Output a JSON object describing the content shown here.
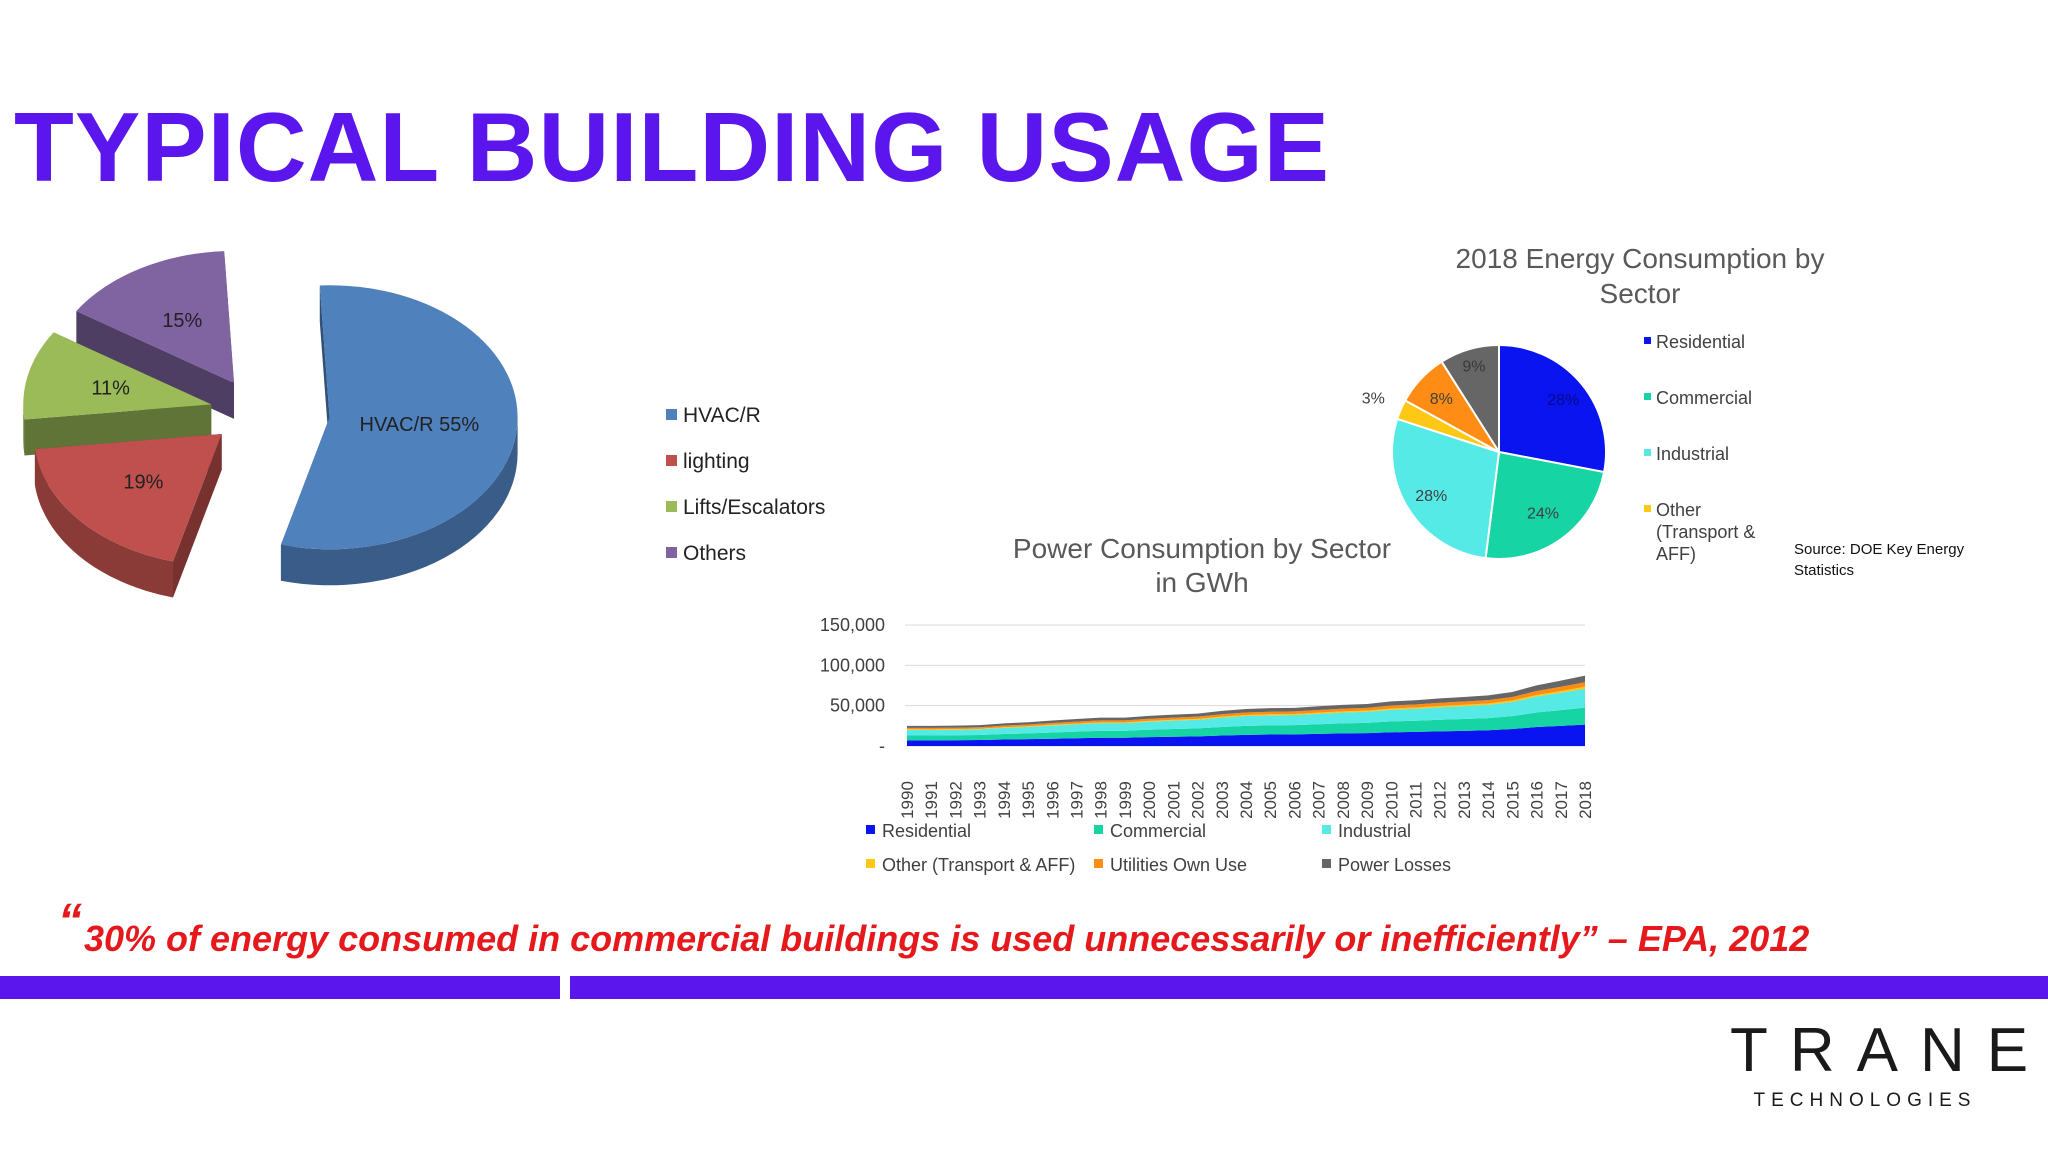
{
  "slide": {
    "title": "TYPICAL BUILDING USAGE"
  },
  "quote": {
    "open_mark": "“",
    "text": "30% of energy consumed in commercial buildings is used unnecessarily or inefficiently” – EPA, 2012",
    "color": "#e5181c"
  },
  "source_note": [
    "Source: DOE Key Energy",
    "Statistics"
  ],
  "brand": {
    "logo_word": "TRANE",
    "logo_sub": "TECHNOLOGIES",
    "accent": "#5b16ee"
  },
  "chart_data": [
    {
      "type": "pie",
      "title": "",
      "categories": [
        "HVAC/R",
        "lighting",
        "Lifts/Escalators",
        "Others"
      ],
      "values": [
        55,
        19,
        11,
        15
      ],
      "data_labels": [
        "HVAC/R 55%",
        "19%",
        "11%",
        "15%"
      ],
      "colors": [
        "#4f81bd",
        "#c0504d",
        "#9bbb59",
        "#8064a2"
      ],
      "legend_position": "right",
      "style": "3d-exploded"
    },
    {
      "type": "pie",
      "title": "2018 Energy Consumption by Sector",
      "categories": [
        "Residential",
        "Commercial",
        "Industrial",
        "Other (Transport & AFF)",
        "Utilities Own Use",
        "Power Losses"
      ],
      "values": [
        28,
        24,
        28,
        3,
        8,
        9
      ],
      "data_labels": [
        "28%",
        "24%",
        "28%",
        "3%",
        "8%",
        "9%"
      ],
      "legend_entries": [
        "Residential",
        "Commercial",
        "Industrial",
        "Other (Transport & AFF)"
      ],
      "colors": [
        "#0a14f0",
        "#16d4a4",
        "#55eae6",
        "#ffc814",
        "#ff8c14",
        "#666666"
      ],
      "legend_position": "right"
    },
    {
      "type": "area",
      "stacked": true,
      "title": "Power Consumption by Sector in GWh",
      "xlabel": "",
      "ylabel": "",
      "x": [
        "1990",
        "1991",
        "1992",
        "1993",
        "1994",
        "1995",
        "1996",
        "1997",
        "1998",
        "1999",
        "2000",
        "2001",
        "2002",
        "2003",
        "2004",
        "2005",
        "2006",
        "2007",
        "2008",
        "2009",
        "2010",
        "2011",
        "2012",
        "2013",
        "2014",
        "2015",
        "2016",
        "2017",
        "2018"
      ],
      "yticks": [
        "150,000",
        "100,000",
        "50,000",
        "-"
      ],
      "ylim": [
        0,
        150000
      ],
      "grid": true,
      "legend_position": "bottom",
      "series": [
        {
          "name": "Residential",
          "color": "#0a14f0",
          "values": [
            7000,
            7000,
            7200,
            7400,
            8000,
            8500,
            9000,
            9600,
            10200,
            10300,
            11000,
            11500,
            12000,
            13000,
            13800,
            14200,
            14400,
            15000,
            15600,
            16000,
            17000,
            17500,
            18200,
            18800,
            19500,
            21000,
            23500,
            25000,
            26500
          ]
        },
        {
          "name": "Commercial",
          "color": "#16d4a4",
          "values": [
            6000,
            6000,
            6100,
            6300,
            6800,
            7200,
            7800,
            8200,
            8600,
            8600,
            9200,
            9500,
            9800,
            10600,
            11200,
            11400,
            11500,
            12000,
            12400,
            12700,
            13500,
            13800,
            14300,
            14700,
            15000,
            16000,
            18000,
            19500,
            21000
          ]
        },
        {
          "name": "Industrial",
          "color": "#55eae6",
          "values": [
            7000,
            6900,
            6900,
            7000,
            7600,
            8000,
            8600,
            9100,
            9500,
            9400,
            10000,
            10400,
            10700,
            11600,
            12200,
            12400,
            12500,
            13000,
            13500,
            13700,
            14500,
            14900,
            15500,
            16000,
            16500,
            17600,
            19800,
            21500,
            23500
          ]
        },
        {
          "name": "Other (Transport & AFF)",
          "color": "#ffc814",
          "values": [
            700,
            700,
            700,
            700,
            800,
            800,
            900,
            900,
            1000,
            1000,
            1000,
            1100,
            1100,
            1200,
            1200,
            1300,
            1300,
            1300,
            1400,
            1400,
            1500,
            1500,
            1600,
            1600,
            1700,
            1800,
            2000,
            2200,
            2400
          ]
        },
        {
          "name": "Utilities Own Use",
          "color": "#ff8c14",
          "values": [
            1800,
            1800,
            1800,
            1900,
            2000,
            2100,
            2200,
            2400,
            2500,
            2500,
            2600,
            2700,
            2800,
            3000,
            3100,
            3200,
            3200,
            3300,
            3400,
            3500,
            3700,
            3800,
            4000,
            4100,
            4200,
            4400,
            4900,
            5300,
            5700
          ]
        },
        {
          "name": "Power Losses",
          "color": "#666666",
          "values": [
            2500,
            2500,
            2500,
            2600,
            2800,
            2900,
            3100,
            3300,
            3400,
            3400,
            3600,
            3700,
            3800,
            4100,
            4300,
            4400,
            4400,
            4600,
            4700,
            4800,
            5100,
            5200,
            5400,
            5600,
            5800,
            6200,
            6900,
            7500,
            8100
          ]
        }
      ]
    }
  ]
}
